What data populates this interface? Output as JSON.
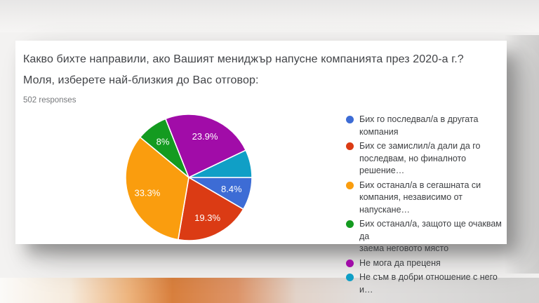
{
  "card": {
    "title_line1": "Какво бихте направили, ако Вашият мениджър напусне компанията през 2020-а г.?",
    "title_line2": "Моля, изберете най-близкия до Вас отговор:",
    "responses_label": "502 responses"
  },
  "chart_data": {
    "type": "pie",
    "title": "Какво бихте направили, ако Вашият мениджър напусне компанията през 2020-а г.? Моля, изберете най-близкия до Вас отговор:",
    "responses": "502 responses",
    "legend_position": "right",
    "start_angle_deg": 90,
    "categories": [
      "Бих го последвал/а в другата компания",
      "Бих се замислил/а дали да го последвам, но финалното решение…",
      "Бих останал/а в сегашната си компания, независимо от напускане…",
      "Бих останал/а, защото ще очаквам да заема неговото място",
      "Не мога да преценя",
      "Не съм в добри отношение с него и…"
    ],
    "values": [
      8.4,
      19.3,
      33.3,
      8.0,
      23.9,
      7.1
    ],
    "slices": [
      {
        "label": "Бих го последвал/а в другата компания",
        "legend_lines": [
          "Бих го последвал/а в другата",
          "компания"
        ],
        "value_pct": 8.4,
        "display_label": "8.4%",
        "color": "#3D6CD5"
      },
      {
        "label": "Бих се замислил/а дали да го последвам, но финалното решение…",
        "legend_lines": [
          "Бих се замислил/а дали да го",
          "последвам, но финалното решение…"
        ],
        "value_pct": 19.3,
        "display_label": "19.3%",
        "color": "#DB3B14"
      },
      {
        "label": "Бих останал/а в сегашната си компания, независимо от напускане…",
        "legend_lines": [
          "Бих останал/а в сегашната си",
          "компания, независимо от напускане…"
        ],
        "value_pct": 33.3,
        "display_label": "33.3%",
        "color": "#FA9D0E"
      },
      {
        "label": "Бих останал/а, защото ще очаквам да заема неговото място",
        "legend_lines": [
          "Бих останал/а, защото ще очаквам да",
          "заема неговото място"
        ],
        "value_pct": 8.0,
        "display_label": "8%",
        "color": "#149B20"
      },
      {
        "label": "Не мога да преценя",
        "legend_lines": [
          "Не мога да преценя"
        ],
        "value_pct": 23.9,
        "display_label": "23.9%",
        "color": "#A10CA8"
      },
      {
        "label": "Не съм в добри отношение с него и…",
        "legend_lines": [
          "Не съм в добри отношение с него и…"
        ],
        "value_pct": 7.1,
        "display_label": "",
        "color": "#109FC6"
      }
    ]
  }
}
